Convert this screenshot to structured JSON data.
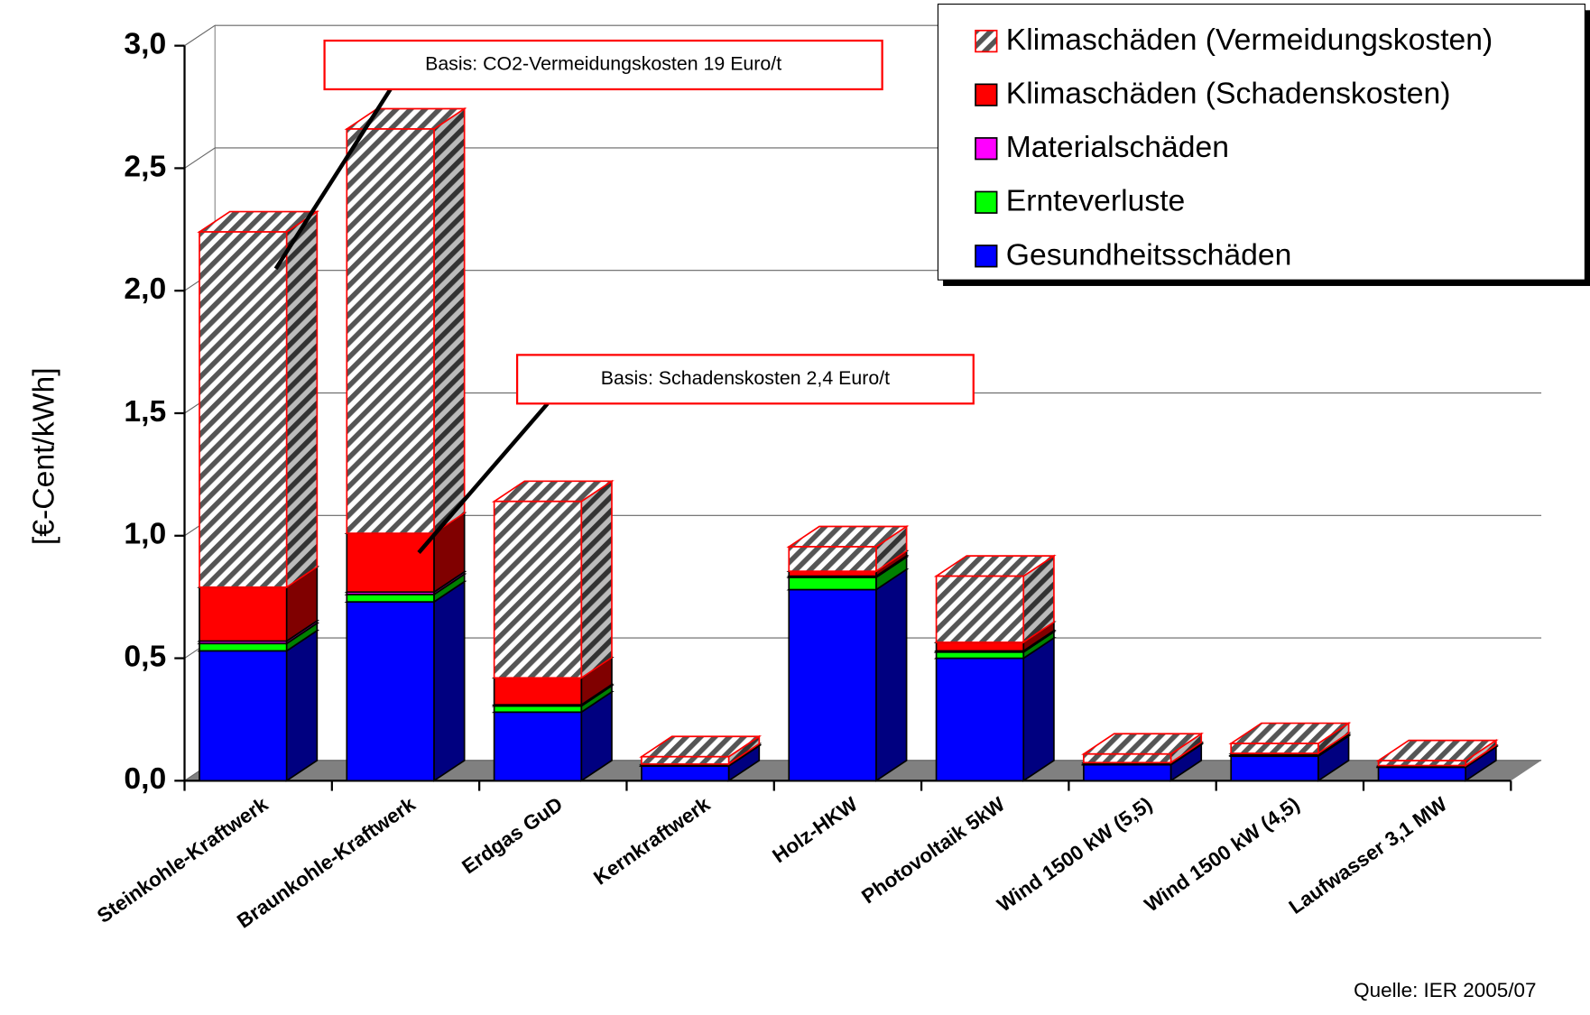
{
  "chart_data": {
    "type": "bar3d_stacked",
    "y_label": "[€-Cent/kWh]",
    "source": "Quelle: IER 2005/07",
    "annotations": [
      "Basis: CO2-Vermeidungskosten 19 Euro/t",
      "Basis: Schadenskosten 2,4 Euro/t"
    ],
    "categories": [
      "Steinkohle-Kraftwerk",
      "Braunkohle-Kraftwerk",
      "Erdgas  GuD",
      "Kernkraftwerk",
      "Holz-HKW",
      "Photovoltaik 5kW",
      "Wind  1500 kW  (5,5)",
      "Wind  1500 kW  (4,5)",
      "Laufwasser  3,1 MW"
    ],
    "series": [
      {
        "name": "Gesundheitsschäden",
        "color": "#0000ff",
        "values": [
          0.53,
          0.73,
          0.28,
          0.06,
          0.78,
          0.5,
          0.065,
          0.1,
          0.055
        ]
      },
      {
        "name": "Ernteverluste",
        "color": "#00ff00",
        "values": [
          0.03,
          0.03,
          0.025,
          0.002,
          0.05,
          0.025,
          0.003,
          0.004,
          0.002
        ]
      },
      {
        "name": "Materialschäden",
        "color": "#ff00ff",
        "values": [
          0.01,
          0.01,
          0.005,
          0.001,
          0.005,
          0.005,
          0.001,
          0.001,
          0.001
        ]
      },
      {
        "name": "Klimaschäden (Schadenskosten)",
        "color": "#ff0000",
        "values": [
          0.22,
          0.24,
          0.11,
          0.005,
          0.02,
          0.035,
          0.005,
          0.007,
          0.004
        ]
      },
      {
        "name": "Klimaschäden (Vermeidungskosten)",
        "color": "#808080",
        "hatch": true,
        "values": [
          1.45,
          1.65,
          0.72,
          0.03,
          0.1,
          0.27,
          0.035,
          0.04,
          0.02
        ]
      }
    ],
    "ylim": [
      0,
      3
    ],
    "yticks": [
      {
        "value": 0,
        "label": "0,0"
      },
      {
        "value": 0.5,
        "label": "0,5"
      },
      {
        "value": 1,
        "label": "1,0"
      },
      {
        "value": 1.5,
        "label": "1,5"
      },
      {
        "value": 2,
        "label": "2,0"
      },
      {
        "value": 2.5,
        "label": "2,5"
      },
      {
        "value": 3,
        "label": "3,0"
      }
    ],
    "grid": true,
    "legend": "top-right"
  }
}
